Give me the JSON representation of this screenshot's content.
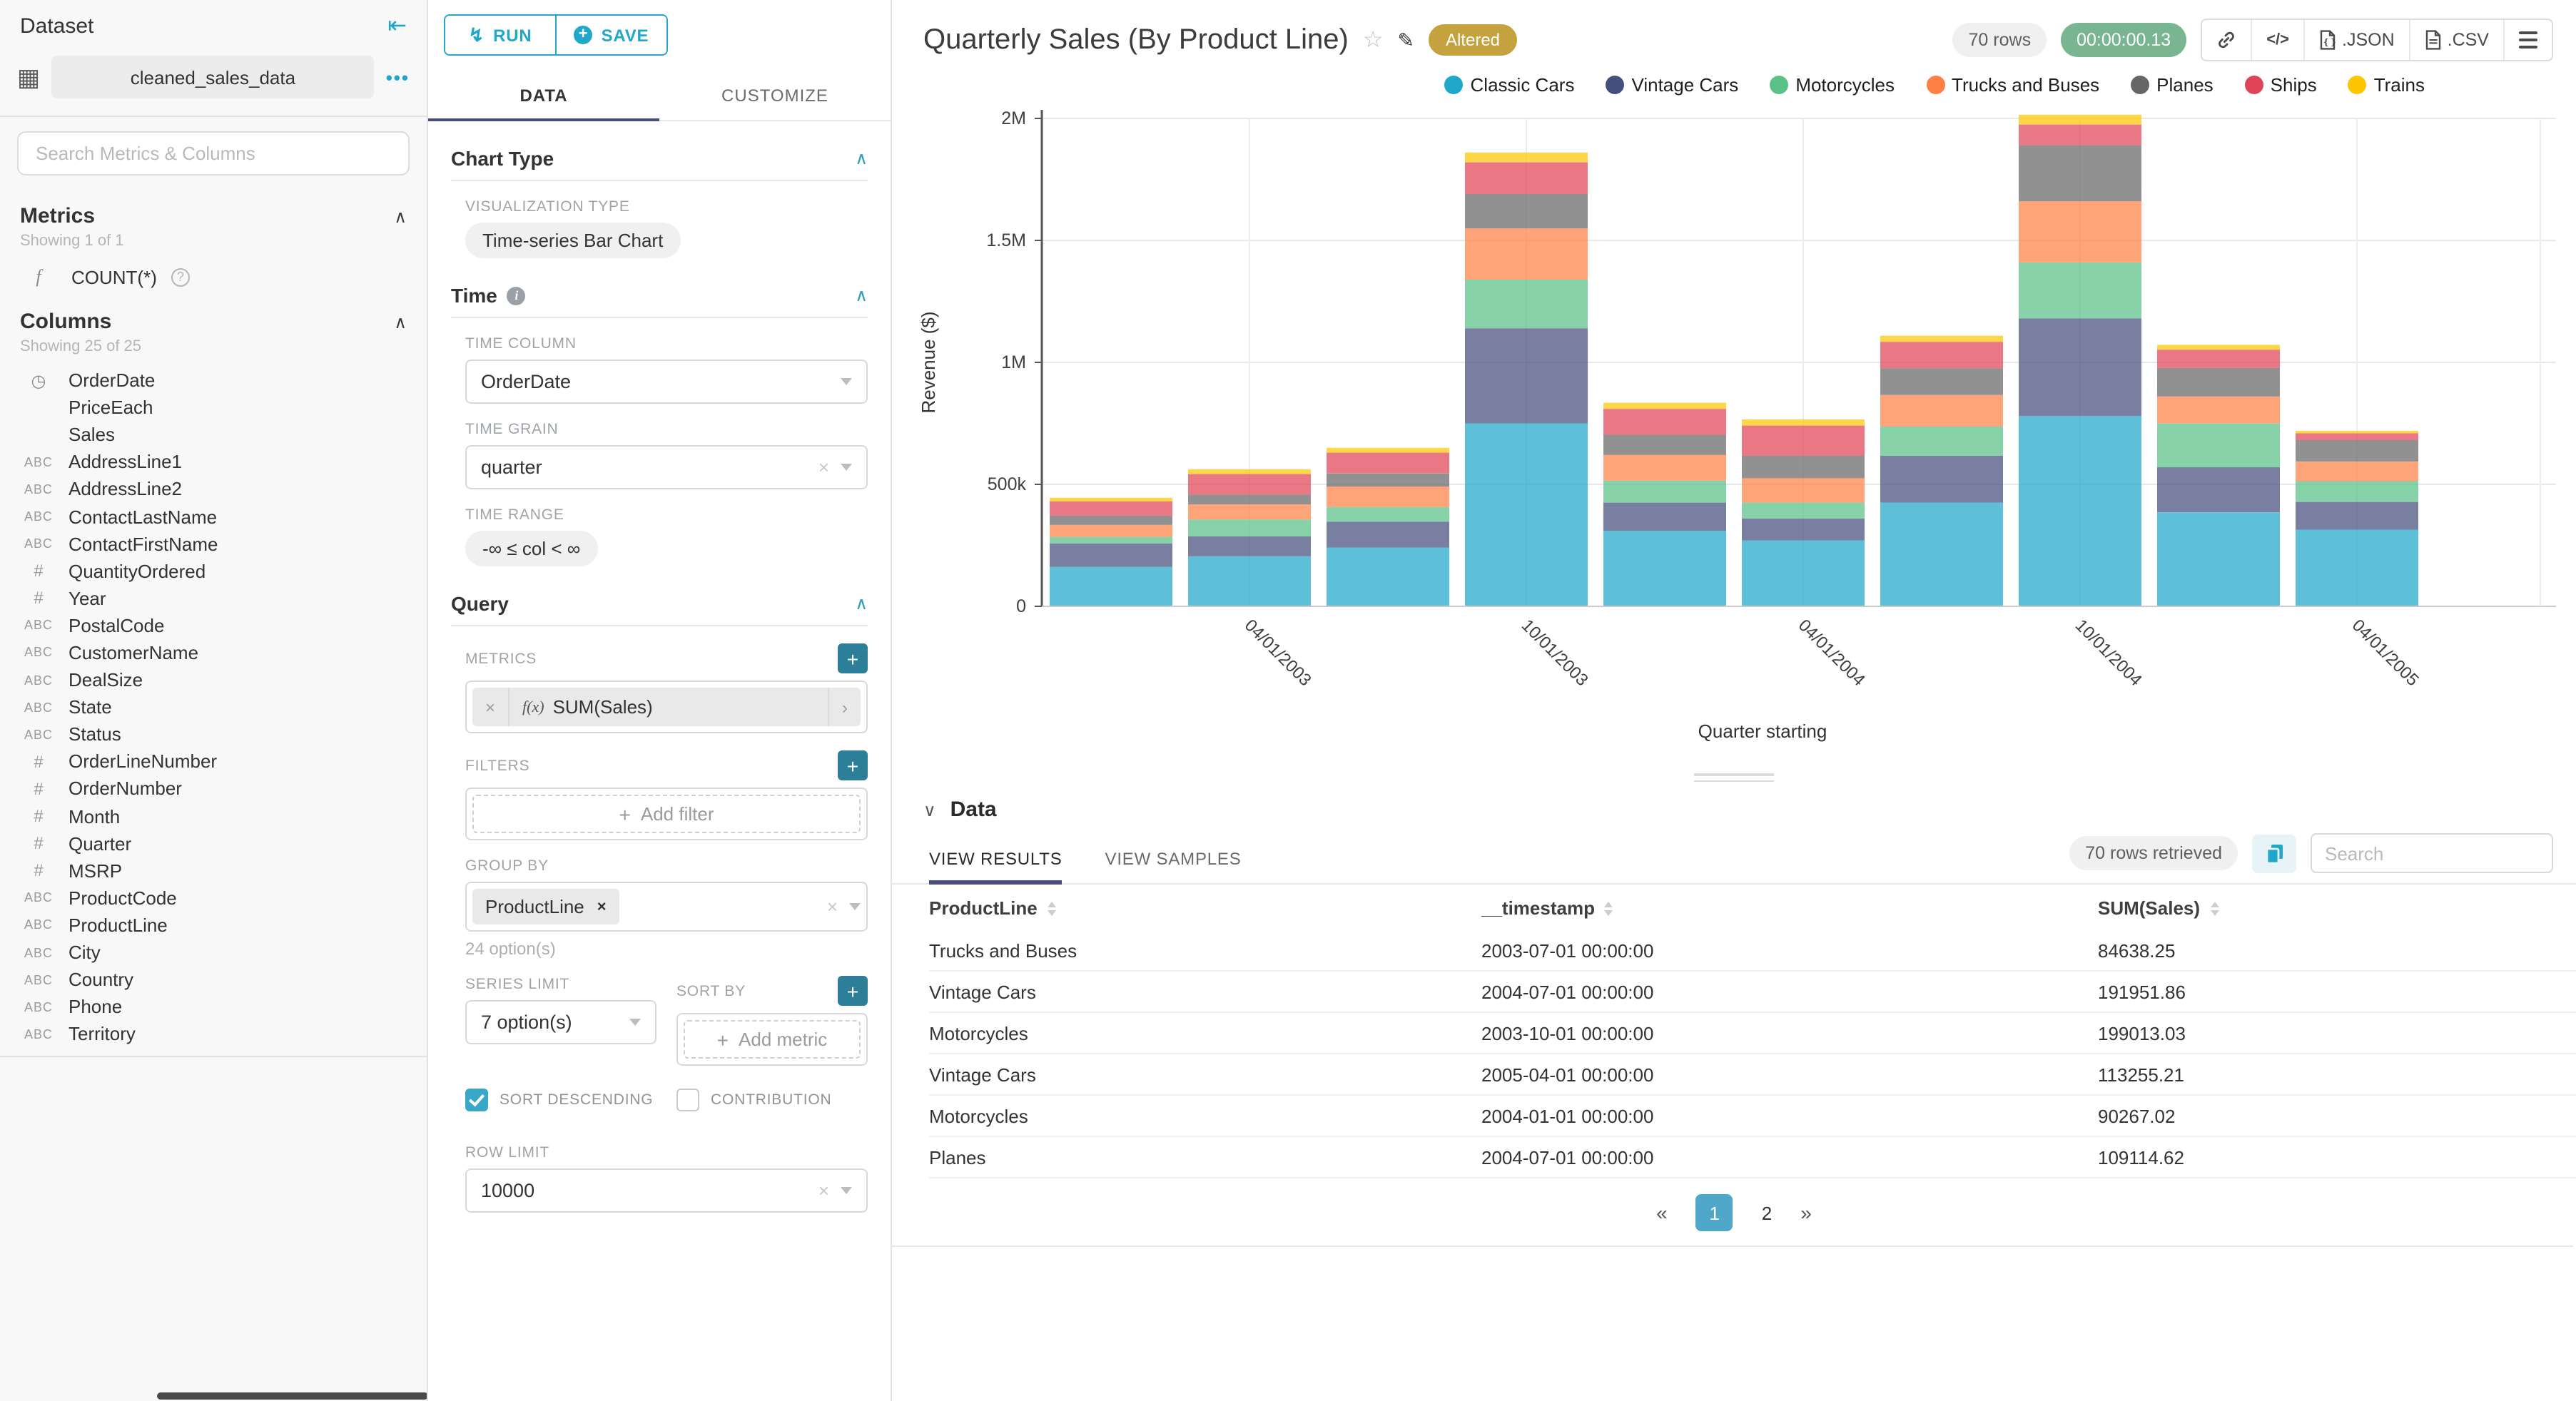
{
  "icons": {
    "collapse": "⇤",
    "grid": "▦",
    "dots": "•••",
    "chevron_up": "∧",
    "chevron_down": "∨",
    "bolt": "↯",
    "plus": "+",
    "close": "×",
    "star": "☆",
    "edit": "✎",
    "code": "</>",
    "fx": "f(x)",
    "f": "f",
    "question": "?",
    "info": "i",
    "clock": "◷"
  },
  "sidebar": {
    "title": "Dataset",
    "dataset_name": "cleaned_sales_data",
    "search_placeholder": "Search Metrics & Columns",
    "metrics": {
      "title": "Metrics",
      "showing": "Showing 1 of 1",
      "items": [
        {
          "label": "COUNT(*)",
          "type": "function"
        }
      ]
    },
    "columns": {
      "title": "Columns",
      "showing": "Showing 25 of 25",
      "items": [
        {
          "label": "OrderDate",
          "type": "time"
        },
        {
          "label": "PriceEach",
          "type": "none"
        },
        {
          "label": "Sales",
          "type": "none"
        },
        {
          "label": "AddressLine1",
          "type": "text"
        },
        {
          "label": "AddressLine2",
          "type": "text"
        },
        {
          "label": "ContactLastName",
          "type": "text"
        },
        {
          "label": "ContactFirstName",
          "type": "text"
        },
        {
          "label": "QuantityOrdered",
          "type": "num"
        },
        {
          "label": "Year",
          "type": "num"
        },
        {
          "label": "PostalCode",
          "type": "text"
        },
        {
          "label": "CustomerName",
          "type": "text"
        },
        {
          "label": "DealSize",
          "type": "text"
        },
        {
          "label": "State",
          "type": "text"
        },
        {
          "label": "Status",
          "type": "text"
        },
        {
          "label": "OrderLineNumber",
          "type": "num"
        },
        {
          "label": "OrderNumber",
          "type": "num"
        },
        {
          "label": "Month",
          "type": "num"
        },
        {
          "label": "Quarter",
          "type": "num"
        },
        {
          "label": "MSRP",
          "type": "num"
        },
        {
          "label": "ProductCode",
          "type": "text"
        },
        {
          "label": "ProductLine",
          "type": "text"
        },
        {
          "label": "City",
          "type": "text"
        },
        {
          "label": "Country",
          "type": "text"
        },
        {
          "label": "Phone",
          "type": "text"
        },
        {
          "label": "Territory",
          "type": "text"
        }
      ]
    }
  },
  "controls": {
    "run_label": "RUN",
    "save_label": "SAVE",
    "tabs": [
      {
        "label": "DATA",
        "active": true
      },
      {
        "label": "CUSTOMIZE",
        "active": false
      }
    ],
    "chart_type": {
      "title": "Chart Type",
      "viz_label": "VISUALIZATION TYPE",
      "viz_value": "Time-series Bar Chart"
    },
    "time": {
      "title": "Time",
      "time_column": {
        "label": "TIME COLUMN",
        "value": "OrderDate"
      },
      "time_grain": {
        "label": "TIME GRAIN",
        "value": "quarter"
      },
      "time_range": {
        "label": "TIME RANGE",
        "value": "-∞ ≤ col < ∞"
      }
    },
    "query": {
      "title": "Query",
      "metrics_label": "METRICS",
      "metric_value": "SUM(Sales)",
      "filters_label": "FILTERS",
      "add_filter": "Add filter",
      "groupby_label": "GROUP BY",
      "groupby_value": "ProductLine",
      "groupby_hint": "24 option(s)",
      "series_limit_label": "SERIES LIMIT",
      "series_limit_value": "7 option(s)",
      "sort_by_label": "SORT BY",
      "add_metric": "Add metric",
      "sort_descending_label": "SORT DESCENDING",
      "contribution_label": "CONTRIBUTION",
      "row_limit_label": "ROW LIMIT",
      "row_limit_value": "10000"
    }
  },
  "header": {
    "title": "Quarterly Sales (By Product Line)",
    "badge": "Altered",
    "rows_pill": "70 rows",
    "timer": "00:00:00.13",
    "export_json": ".JSON",
    "export_csv": ".CSV"
  },
  "chart_data": {
    "type": "bar",
    "stacked": true,
    "title": "Quarterly Sales (By Product Line)",
    "xlabel": "Quarter starting",
    "ylabel": "Revenue ($)",
    "ylim": [
      0,
      2000000
    ],
    "grid": true,
    "legend_position": "top-right",
    "categories": [
      "2003-01-01",
      "2003-04-01",
      "2003-07-01",
      "2003-10-01",
      "2004-01-01",
      "2004-04-01",
      "2004-07-01",
      "2004-10-01",
      "2005-01-01",
      "2005-04-01"
    ],
    "x_tick_labels": [
      "04/01/2003",
      "10/01/2003",
      "04/01/2004",
      "10/01/2004",
      "04/01/2005"
    ],
    "x_tick_bar_indices": [
      1,
      3,
      5,
      7,
      9
    ],
    "yticks": [
      {
        "v": 0,
        "label": "0"
      },
      {
        "v": 500000,
        "label": "500k"
      },
      {
        "v": 1000000,
        "label": "1M"
      },
      {
        "v": 1500000,
        "label": "1.5M"
      },
      {
        "v": 2000000,
        "label": "2M"
      }
    ],
    "series": [
      {
        "name": "Classic Cars",
        "color": "#1FA8C9",
        "values": [
          162000,
          205000,
          242000,
          750000,
          310000,
          270000,
          425000,
          780000,
          385000,
          315000
        ]
      },
      {
        "name": "Vintage Cars",
        "color": "#454E7C",
        "values": [
          96000,
          82000,
          105000,
          390000,
          115000,
          90000,
          191952,
          400000,
          185000,
          113255
        ]
      },
      {
        "name": "Motorcycles",
        "color": "#5AC189",
        "values": [
          27000,
          69000,
          60000,
          199013,
          90267,
          65000,
          120000,
          230000,
          180000,
          85000
        ]
      },
      {
        "name": "Trucks and Buses",
        "color": "#FF7F44",
        "values": [
          49000,
          62000,
          84638,
          210000,
          105000,
          100000,
          130000,
          250000,
          110000,
          80000
        ]
      },
      {
        "name": "Planes",
        "color": "#666666",
        "values": [
          38000,
          40000,
          53000,
          141000,
          83000,
          92000,
          109115,
          230000,
          117000,
          88000
        ]
      },
      {
        "name": "Ships",
        "color": "#E04355",
        "values": [
          58000,
          84000,
          85000,
          130000,
          106000,
          124000,
          108000,
          85000,
          75000,
          28000
        ]
      },
      {
        "name": "Trains",
        "color": "#FCC700",
        "values": [
          15000,
          20000,
          20000,
          40000,
          25000,
          25000,
          25000,
          40000,
          20000,
          10000
        ]
      }
    ]
  },
  "data_panel": {
    "title": "Data",
    "tabs": [
      {
        "label": "VIEW RESULTS",
        "active": true
      },
      {
        "label": "VIEW SAMPLES",
        "active": false
      }
    ],
    "rows_retrieved": "70 rows retrieved",
    "search_placeholder": "Search",
    "columns": [
      "ProductLine",
      "__timestamp",
      "SUM(Sales)"
    ],
    "rows": [
      [
        "Trucks and Buses",
        "2003-07-01 00:00:00",
        "84638.25"
      ],
      [
        "Vintage Cars",
        "2004-07-01 00:00:00",
        "191951.86"
      ],
      [
        "Motorcycles",
        "2003-10-01 00:00:00",
        "199013.03"
      ],
      [
        "Vintage Cars",
        "2005-04-01 00:00:00",
        "113255.21"
      ],
      [
        "Motorcycles",
        "2004-01-01 00:00:00",
        "90267.02"
      ],
      [
        "Planes",
        "2004-07-01 00:00:00",
        "109114.62"
      ]
    ],
    "pagination": {
      "prev": "«",
      "pages": [
        "1",
        "2"
      ],
      "active": "1",
      "next": "»"
    }
  }
}
